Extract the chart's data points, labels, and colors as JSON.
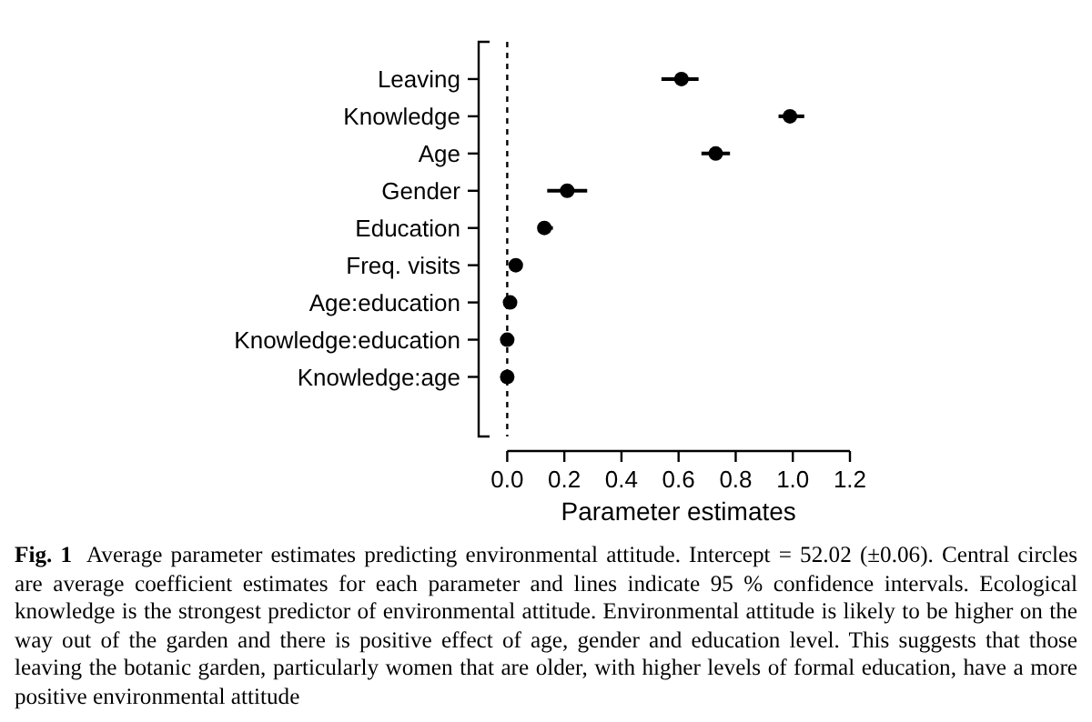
{
  "chart_data": {
    "type": "scatter",
    "orientation": "horizontal",
    "xlabel": "Parameter estimates",
    "categories": [
      "Leaving",
      "Knowledge",
      "Age",
      "Gender",
      "Education",
      "Freq. visits",
      "Age:education",
      "Knowledge:education",
      "Knowledge:age"
    ],
    "values": [
      0.61,
      0.99,
      0.73,
      0.21,
      0.13,
      0.03,
      0.01,
      0,
      0
    ],
    "errors": [
      [
        0.54,
        0.67
      ],
      [
        0.95,
        1.04
      ],
      [
        0.68,
        0.78
      ],
      [
        0.14,
        0.28
      ],
      [
        0.11,
        0.16
      ],
      null,
      null,
      null,
      null
    ],
    "color": "#000000",
    "marker": "circle",
    "xlim": [
      -0.1,
      1.2
    ],
    "xticks": [
      {
        "value": 0,
        "label": "0.0"
      },
      0.2,
      0.4,
      0.6,
      0.8,
      {
        "value": 1,
        "label": "1.0"
      },
      1.2
    ],
    "ref_lines": [
      {
        "axis": "x",
        "value": 0,
        "line_style": "dashed",
        "color": "#000000"
      }
    ],
    "annotations": [
      "Fig. 1",
      "Average parameter estimates predicting environmental attitude. Intercept = 52.02 (±0.06). Central circles are average coefficient estimates for each parameter and lines indicate 95 % confidence intervals. Ecological knowledge is the strongest predictor of environmental attitude. Environmental attitude is likely to be higher on the way out of the garden and there is positive effect of age, gender and education level. This suggests that those leaving the botanic garden, particularly women that are older, with higher levels of formal education, have a more positive environmental attitude"
    ]
  }
}
